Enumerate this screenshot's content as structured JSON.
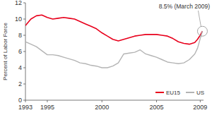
{
  "chart_data": {
    "type": "line",
    "y_label": "Percent of Labor Force",
    "x": [
      1993,
      1993.5,
      1994,
      1994.5,
      1995,
      1995.5,
      1996,
      1996.5,
      1997,
      1997.5,
      1998,
      1998.5,
      1999,
      1999.5,
      2000,
      2000.5,
      2001,
      2001.5,
      2002,
      2002.5,
      2003,
      2003.5,
      2004,
      2004.5,
      2005,
      2005.5,
      2006,
      2006.5,
      2007,
      2007.5,
      2008,
      2008.5,
      2008.75,
      2009,
      2009.2
    ],
    "series": [
      {
        "name": "EU15",
        "color": "#e8001c",
        "values": [
          9.2,
          10.0,
          10.4,
          10.5,
          10.2,
          10.0,
          10.1,
          10.2,
          10.1,
          10.0,
          9.7,
          9.4,
          9.1,
          8.8,
          8.3,
          7.9,
          7.5,
          7.3,
          7.5,
          7.7,
          7.9,
          8.0,
          8.1,
          8.1,
          8.1,
          8.0,
          7.9,
          7.6,
          7.2,
          7.0,
          6.9,
          7.1,
          7.5,
          8.0,
          8.5
        ]
      },
      {
        "name": "US",
        "color": "#b4b4b4",
        "values": [
          7.2,
          6.9,
          6.6,
          6.1,
          5.6,
          5.6,
          5.5,
          5.3,
          5.1,
          4.9,
          4.6,
          4.5,
          4.3,
          4.2,
          4.0,
          4.0,
          4.2,
          4.6,
          5.7,
          5.8,
          5.9,
          6.2,
          5.7,
          5.5,
          5.3,
          5.0,
          4.7,
          4.6,
          4.5,
          4.6,
          5.0,
          5.7,
          6.4,
          7.6,
          8.5
        ]
      }
    ],
    "xlim": [
      1993,
      2009.3
    ],
    "xticks": [
      1993,
      1995,
      2000,
      2005,
      2009
    ],
    "ylim": [
      0,
      12
    ],
    "yticks": [
      0,
      2,
      4,
      6,
      8,
      10,
      12
    ],
    "grid": false,
    "legend": "bottom-right",
    "annotations": [
      {
        "text": "8.5% (March 2009)",
        "x": 2009.2,
        "y": 8.5
      }
    ]
  }
}
